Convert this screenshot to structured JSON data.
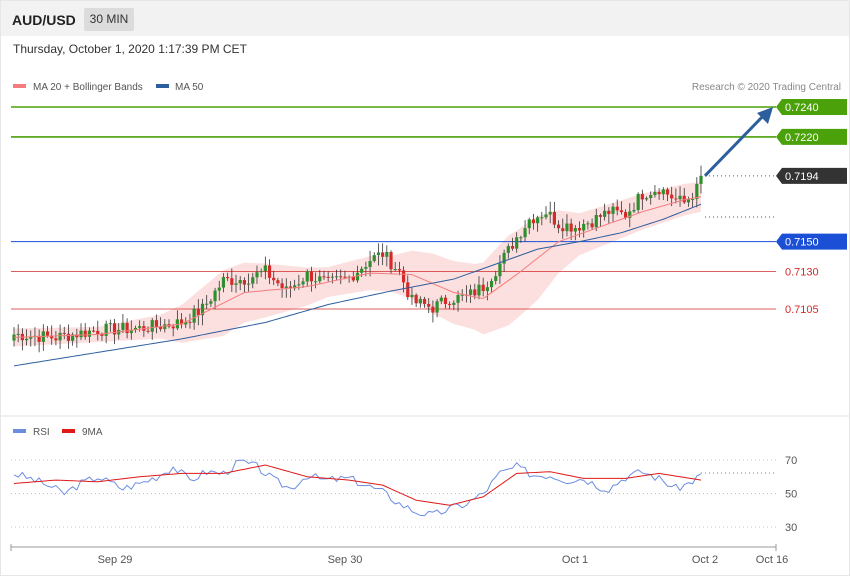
{
  "header": {
    "symbol": "AUD/USD",
    "timeframe": "30 MIN"
  },
  "datetime": "Thursday, October 1, 2020 1:17:39 PM CET",
  "colors": {
    "ma20": "#f47c7c",
    "ma50": "#2d5f9e",
    "band": "#fcd9d9",
    "bull": "#2f8f2f",
    "bear": "#d42a2a",
    "support": "#d42a2a",
    "resistance": "#4aa10a",
    "pivot": "#1a4fd6",
    "arrow": "#2d5f9e",
    "rsi": "#6b8de0",
    "ma9": "#e01818"
  },
  "chart_data": [
    {
      "type": "candlestick",
      "title": "",
      "legend": [
        {
          "name": "MA 20 + Bollinger Bands",
          "color": "#f47c7c"
        },
        {
          "name": "MA 50",
          "color": "#2d5f9e"
        }
      ],
      "credit": "Research © 2020 Trading Central",
      "ylim": [
        0.7065,
        0.7253
      ],
      "x_ticks": [
        "Sep 29",
        "Sep 30",
        "Oct 1",
        "Oct 2",
        "Oct 16"
      ],
      "levels": [
        {
          "label": "0.7240",
          "value": 0.724,
          "kind": "resistance"
        },
        {
          "label": "0.7220",
          "value": 0.722,
          "kind": "resistance"
        },
        {
          "label": "0.7194",
          "value": 0.7194,
          "kind": "current"
        },
        {
          "label": "0.7150",
          "value": 0.715,
          "kind": "pivot"
        },
        {
          "label": "0.7130",
          "value": 0.713,
          "kind": "support"
        },
        {
          "label": "0.7105",
          "value": 0.7105,
          "kind": "support"
        }
      ],
      "close_anchors": [
        [
          0,
          0.7088
        ],
        [
          10,
          0.7086
        ],
        [
          20,
          0.7091
        ],
        [
          30,
          0.7092
        ],
        [
          35,
          0.7094
        ],
        [
          40,
          0.7096
        ],
        [
          45,
          0.7105
        ],
        [
          50,
          0.7124
        ],
        [
          55,
          0.7125
        ],
        [
          60,
          0.713
        ],
        [
          65,
          0.7117
        ],
        [
          70,
          0.7128
        ],
        [
          75,
          0.7122
        ],
        [
          80,
          0.7126
        ],
        [
          85,
          0.7138
        ],
        [
          88,
          0.7142
        ],
        [
          92,
          0.713
        ],
        [
          95,
          0.711
        ],
        [
          100,
          0.7106
        ],
        [
          104,
          0.7112
        ],
        [
          108,
          0.7113
        ],
        [
          112,
          0.712
        ],
        [
          116,
          0.7135
        ],
        [
          120,
          0.7153
        ],
        [
          123,
          0.7165
        ],
        [
          127,
          0.717
        ],
        [
          130,
          0.7162
        ],
        [
          134,
          0.716
        ],
        [
          138,
          0.7164
        ],
        [
          142,
          0.717
        ],
        [
          146,
          0.7168
        ],
        [
          150,
          0.7182
        ],
        [
          154,
          0.7186
        ],
        [
          158,
          0.7178
        ],
        [
          160,
          0.7176
        ],
        [
          163,
          0.7185
        ],
        [
          164,
          0.7194
        ]
      ],
      "ma20_anchors": [
        [
          0,
          0.7086
        ],
        [
          20,
          0.7088
        ],
        [
          40,
          0.7095
        ],
        [
          55,
          0.7116
        ],
        [
          70,
          0.712
        ],
        [
          85,
          0.7129
        ],
        [
          95,
          0.7128
        ],
        [
          105,
          0.7116
        ],
        [
          112,
          0.7112
        ],
        [
          120,
          0.7128
        ],
        [
          130,
          0.715
        ],
        [
          140,
          0.716
        ],
        [
          150,
          0.717
        ],
        [
          160,
          0.7178
        ],
        [
          164,
          0.718
        ]
      ],
      "ma50_anchors": [
        [
          0,
          0.7067
        ],
        [
          20,
          0.7076
        ],
        [
          40,
          0.7085
        ],
        [
          60,
          0.7096
        ],
        [
          75,
          0.7108
        ],
        [
          90,
          0.7117
        ],
        [
          105,
          0.7125
        ],
        [
          115,
          0.7135
        ],
        [
          125,
          0.7145
        ],
        [
          135,
          0.715
        ],
        [
          145,
          0.7156
        ],
        [
          155,
          0.7165
        ],
        [
          164,
          0.7175
        ]
      ],
      "band_width_anchors": [
        [
          0,
          0.0006
        ],
        [
          20,
          0.0005
        ],
        [
          35,
          0.0008
        ],
        [
          50,
          0.0022
        ],
        [
          60,
          0.0018
        ],
        [
          75,
          0.001
        ],
        [
          90,
          0.0012
        ],
        [
          100,
          0.002
        ],
        [
          110,
          0.0022
        ],
        [
          118,
          0.003
        ],
        [
          125,
          0.0028
        ],
        [
          135,
          0.0014
        ],
        [
          150,
          0.0012
        ],
        [
          164,
          0.001
        ]
      ],
      "forecast": {
        "from": 0.7194,
        "to": 0.724
      }
    },
    {
      "type": "line",
      "title": "",
      "legend": [
        {
          "name": "RSI",
          "color": "#6b8de0"
        },
        {
          "name": "9MA",
          "color": "#e01818"
        }
      ],
      "y_ticks": [
        "70",
        "50",
        "30"
      ],
      "ylim": [
        20,
        80
      ],
      "rsi_anchors": [
        [
          0,
          62
        ],
        [
          5,
          58
        ],
        [
          8,
          55
        ],
        [
          12,
          50
        ],
        [
          16,
          56
        ],
        [
          20,
          60
        ],
        [
          26,
          53
        ],
        [
          30,
          56
        ],
        [
          34,
          60
        ],
        [
          38,
          66
        ],
        [
          42,
          58
        ],
        [
          46,
          63
        ],
        [
          50,
          62
        ],
        [
          54,
          69
        ],
        [
          58,
          66
        ],
        [
          62,
          58
        ],
        [
          66,
          53
        ],
        [
          70,
          61
        ],
        [
          74,
          58
        ],
        [
          80,
          59
        ],
        [
          84,
          55
        ],
        [
          88,
          51
        ],
        [
          92,
          44
        ],
        [
          96,
          39
        ],
        [
          100,
          37
        ],
        [
          104,
          41
        ],
        [
          108,
          44
        ],
        [
          112,
          50
        ],
        [
          116,
          62
        ],
        [
          120,
          66
        ],
        [
          124,
          61
        ],
        [
          128,
          61
        ],
        [
          132,
          58
        ],
        [
          136,
          59
        ],
        [
          140,
          54
        ],
        [
          142,
          53
        ],
        [
          146,
          60
        ],
        [
          150,
          63
        ],
        [
          154,
          59
        ],
        [
          158,
          53
        ],
        [
          161,
          56
        ],
        [
          164,
          61
        ]
      ],
      "ma9_anchors": [
        [
          0,
          56
        ],
        [
          10,
          58
        ],
        [
          20,
          57
        ],
        [
          30,
          60
        ],
        [
          40,
          62
        ],
        [
          50,
          62
        ],
        [
          60,
          67
        ],
        [
          70,
          60
        ],
        [
          80,
          58
        ],
        [
          88,
          55
        ],
        [
          96,
          46
        ],
        [
          104,
          43
        ],
        [
          112,
          48
        ],
        [
          120,
          62
        ],
        [
          128,
          63
        ],
        [
          136,
          59
        ],
        [
          146,
          59
        ],
        [
          154,
          62
        ],
        [
          164,
          58
        ]
      ]
    }
  ]
}
